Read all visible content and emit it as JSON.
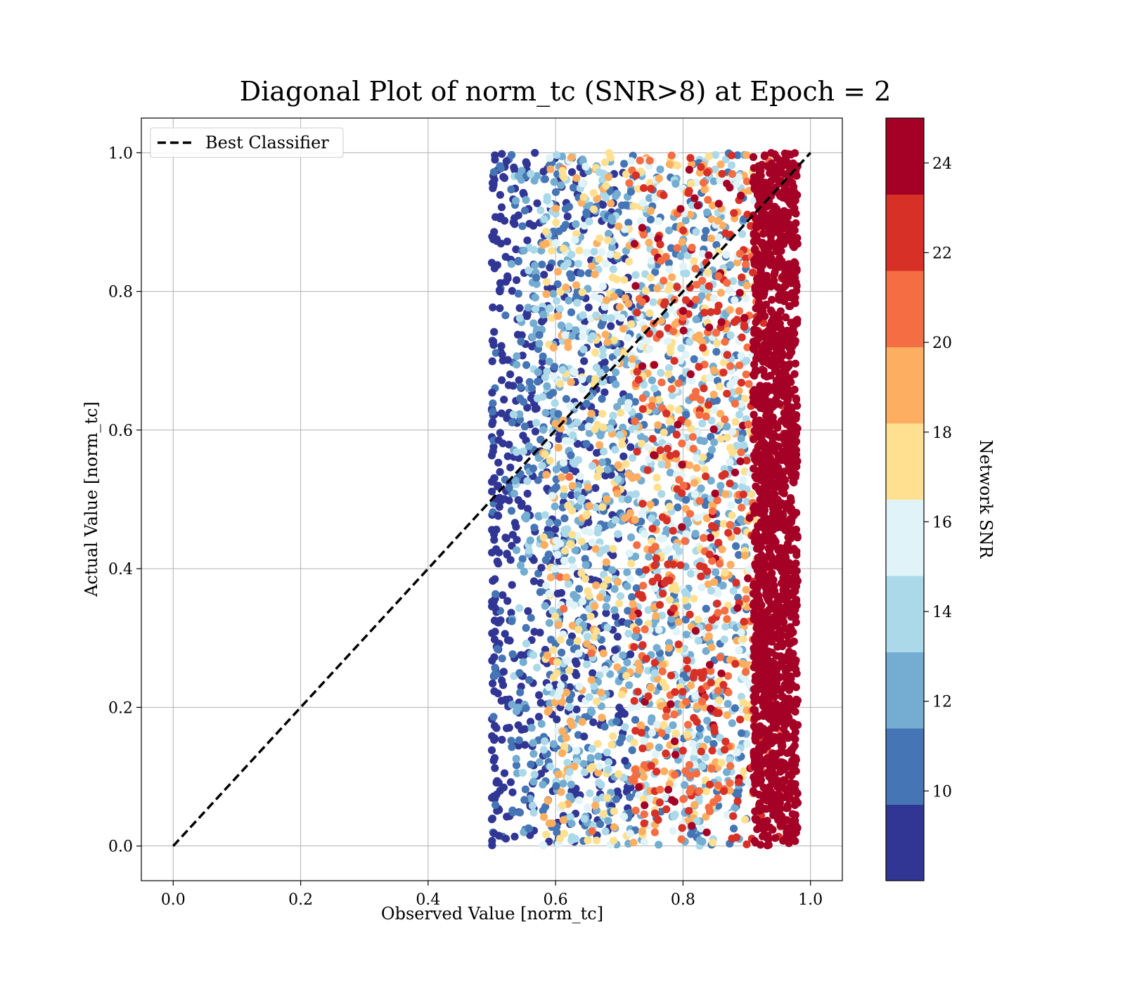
{
  "chart_data": {
    "type": "scatter",
    "title": "Diagonal Plot of norm_tc (SNR>8) at Epoch = 2",
    "xlabel": "Observed Value [norm_tc]",
    "ylabel": "Actual Value [norm_tc]",
    "xlim": [
      -0.05,
      1.05
    ],
    "ylim": [
      -0.05,
      1.05
    ],
    "xticks": [
      "0.0",
      "0.2",
      "0.4",
      "0.6",
      "0.8",
      "1.0"
    ],
    "yticks": [
      "0.0",
      "0.2",
      "0.4",
      "0.6",
      "0.8",
      "1.0"
    ],
    "grid": true,
    "legend": {
      "position": "upper-left",
      "entries": [
        "Best Classifier"
      ]
    },
    "reference_line": {
      "name": "Best Classifier",
      "style": "dashed",
      "color": "#000000",
      "x": [
        0,
        1
      ],
      "y": [
        0,
        1
      ]
    },
    "scatter_ranges": [
      {
        "snr": [
          8,
          10
        ],
        "x": [
          0.5,
          0.72
        ],
        "y": [
          0.0,
          1.0
        ]
      },
      {
        "snr": [
          10,
          14
        ],
        "x": [
          0.53,
          0.9
        ],
        "y": [
          0.0,
          1.0
        ]
      },
      {
        "snr": [
          14,
          20
        ],
        "x": [
          0.58,
          0.92
        ],
        "y": [
          0.0,
          1.0
        ]
      },
      {
        "snr": [
          20,
          24
        ],
        "x": [
          0.72,
          0.96
        ],
        "y": [
          0.0,
          1.0
        ]
      },
      {
        "snr": [
          24,
          25
        ],
        "x": [
          0.91,
          0.98
        ],
        "y": [
          0.0,
          1.0
        ]
      }
    ],
    "colorbar": {
      "label": "Network SNR",
      "range": [
        8,
        25
      ],
      "ticks": [
        "10",
        "12",
        "14",
        "16",
        "18",
        "20",
        "22",
        "24"
      ],
      "bins": [
        {
          "from": 8,
          "to": 9.7,
          "color": "#313695"
        },
        {
          "from": 9.7,
          "to": 11.4,
          "color": "#4575b4"
        },
        {
          "from": 11.4,
          "to": 13.1,
          "color": "#74add1"
        },
        {
          "from": 13.1,
          "to": 14.8,
          "color": "#abd9e9"
        },
        {
          "from": 14.8,
          "to": 16.5,
          "color": "#e0f3f8"
        },
        {
          "from": 16.5,
          "to": 18.2,
          "color": "#fee090"
        },
        {
          "from": 18.2,
          "to": 19.9,
          "color": "#fdae61"
        },
        {
          "from": 19.9,
          "to": 21.6,
          "color": "#f46d43"
        },
        {
          "from": 21.6,
          "to": 23.3,
          "color": "#d73027"
        },
        {
          "from": 23.3,
          "to": 25,
          "color": "#a50026"
        }
      ]
    }
  }
}
